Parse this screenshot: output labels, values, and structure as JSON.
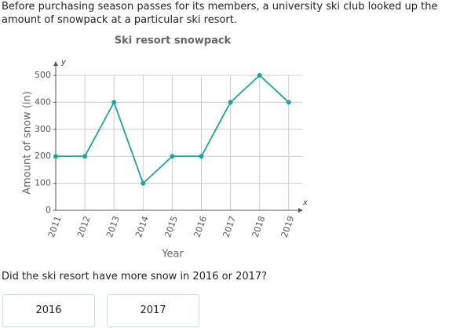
{
  "prompt": "Before purchasing season passes for its members, a university ski club looked up the amount of snowpack at a particular ski resort.",
  "chart_data": {
    "type": "line",
    "title": "Ski resort snowpack",
    "x_label": "Year",
    "y_label": "Amount of snow (in)",
    "x_axis_symbol": "x",
    "y_axis_symbol": "y",
    "categories": [
      "2011",
      "2012",
      "2013",
      "2014",
      "2015",
      "2016",
      "2017",
      "2018",
      "2019"
    ],
    "values": [
      200,
      200,
      400,
      100,
      200,
      200,
      400,
      500,
      400
    ],
    "color": "#1aa79a",
    "ylim": [
      0,
      500
    ],
    "yticks": [
      0,
      100,
      200,
      300,
      400,
      500
    ],
    "grid": true
  },
  "question": "Did the ski resort have more snow in 2016 or 2017?",
  "choices": [
    "2016",
    "2017"
  ]
}
